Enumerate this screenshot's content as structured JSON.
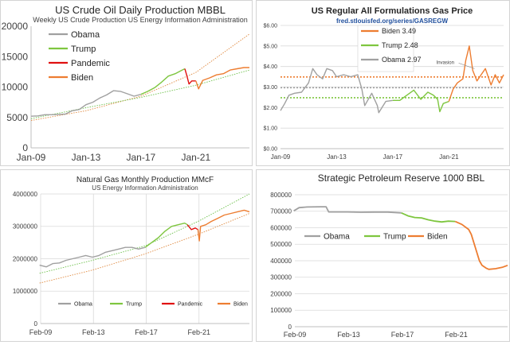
{
  "colors": {
    "obama": "#a0a0a0",
    "trump": "#7ec63f",
    "pandemic": "#e01010",
    "biden": "#ed7d31",
    "grid": "#d9d9d9",
    "trend": "#6cc04a",
    "trend2": "#e08a40"
  },
  "chart_data": [
    {
      "type": "line",
      "title": "US Crude Oil Daily Production MBBL",
      "subtitle": "Weekly US Crude Production US Energy Information Administration",
      "xlim": [
        2009,
        2024.9
      ],
      "ylim": [
        0,
        20000
      ],
      "ytick_values": [
        0,
        5000,
        10000,
        15000,
        20000
      ],
      "ytick_labels": [
        "0",
        "5000",
        "10000",
        "15000",
        "20000"
      ],
      "xtick_values": [
        2009,
        2013,
        2017,
        2021
      ],
      "xtick_labels": [
        "Jan-09",
        "Jan-13",
        "Jan-17",
        "Jan-21"
      ],
      "legend": [
        {
          "key": "obama",
          "name": "Obama"
        },
        {
          "key": "trump",
          "name": "Trump"
        },
        {
          "key": "pandemic",
          "name": "Pandemic"
        },
        {
          "key": "biden",
          "name": "Biden"
        }
      ],
      "series": [
        {
          "key": "obama",
          "name": "Obama",
          "x": [
            2009,
            2009.5,
            2010,
            2010.5,
            2011,
            2011.5,
            2012,
            2012.5,
            2013,
            2013.5,
            2014,
            2014.5,
            2015,
            2015.5,
            2016,
            2016.5,
            2017
          ],
          "y": [
            5200,
            5250,
            5450,
            5450,
            5500,
            5550,
            6100,
            6300,
            7100,
            7500,
            8200,
            8700,
            9400,
            9300,
            8900,
            8500,
            8800
          ]
        },
        {
          "key": "trump",
          "name": "Trump",
          "x": [
            2017,
            2017.5,
            2018,
            2018.5,
            2019,
            2019.5,
            2020,
            2020.2
          ],
          "y": [
            8800,
            9300,
            9900,
            10800,
            11800,
            12200,
            12800,
            13000
          ]
        },
        {
          "key": "pandemic",
          "name": "Pandemic",
          "x": [
            2020.2,
            2020.35,
            2020.5,
            2020.7,
            2021
          ],
          "y": [
            13000,
            11800,
            10500,
            11000,
            11000
          ]
        },
        {
          "key": "biden",
          "name": "Biden",
          "x": [
            2021,
            2021.2,
            2021.5,
            2022,
            2022.5,
            2023,
            2023.5,
            2024,
            2024.5,
            2024.9
          ],
          "y": [
            11000,
            9700,
            11100,
            11500,
            12000,
            12200,
            12800,
            13000,
            13200,
            13200
          ]
        }
      ],
      "trends": [
        {
          "x": [
            2009,
            2013,
            2017,
            2021,
            2024.9
          ],
          "y": [
            4500,
            6100,
            8500,
            12400,
            18700
          ]
        },
        {
          "x": [
            2009,
            2013,
            2017,
            2021,
            2024.9
          ],
          "y": [
            4800,
            6600,
            8300,
            10300,
            12800
          ]
        }
      ]
    },
    {
      "type": "line",
      "title": "US Regular All Formulations Gas Price",
      "subtitle": "fred.stlouisfed.org/series/GASREGW",
      "xlim": [
        2009,
        2024.9
      ],
      "ylim": [
        0,
        6
      ],
      "ytick_values": [
        0,
        1,
        2,
        3,
        4,
        5,
        6
      ],
      "ytick_labels": [
        "$0.00",
        "$1.00",
        "$2.00",
        "$3.00",
        "$4.00",
        "$5.00",
        "$6.00"
      ],
      "xtick_values": [
        2009,
        2013,
        2017,
        2021
      ],
      "xtick_labels": [
        "Jan-09",
        "Jan-13",
        "Jan-17",
        "Jan-21"
      ],
      "legend": [
        {
          "key": "biden",
          "name": "Biden 3.49"
        },
        {
          "key": "trump",
          "name": "Trump 2.48"
        },
        {
          "key": "obama",
          "name": "Obama 2.97"
        }
      ],
      "annotation": "Invasion",
      "averages": [
        {
          "key": "biden",
          "value": 3.49
        },
        {
          "key": "trump",
          "value": 2.48
        },
        {
          "key": "obama",
          "value": 2.97
        }
      ],
      "series": [
        {
          "key": "obama",
          "name": "Obama",
          "x": [
            2009,
            2009.3,
            2009.6,
            2010,
            2010.5,
            2011,
            2011.3,
            2011.6,
            2012,
            2012.3,
            2012.7,
            2013,
            2013.5,
            2014,
            2014.5,
            2014.8,
            2015,
            2015.5,
            2015.9,
            2016,
            2016.5,
            2017
          ],
          "y": [
            1.85,
            2.2,
            2.6,
            2.7,
            2.75,
            3.2,
            3.9,
            3.6,
            3.4,
            3.9,
            3.8,
            3.5,
            3.6,
            3.5,
            3.6,
            2.9,
            2.1,
            2.7,
            2.1,
            1.75,
            2.3,
            2.35
          ]
        },
        {
          "key": "trump",
          "name": "Trump",
          "x": [
            2017,
            2017.5,
            2018,
            2018.5,
            2019,
            2019.5,
            2019.9,
            2020.2,
            2020.35,
            2020.6,
            2021
          ],
          "y": [
            2.35,
            2.35,
            2.6,
            2.85,
            2.4,
            2.75,
            2.6,
            2.4,
            1.8,
            2.2,
            2.3
          ]
        },
        {
          "key": "biden",
          "name": "Biden",
          "x": [
            2021,
            2021.3,
            2021.6,
            2022,
            2022.2,
            2022.45,
            2022.7,
            2023,
            2023.3,
            2023.6,
            2024,
            2024.3,
            2024.6,
            2024.9
          ],
          "y": [
            2.3,
            2.9,
            3.2,
            3.4,
            4.3,
            5.0,
            3.8,
            3.3,
            3.6,
            3.9,
            3.1,
            3.6,
            3.2,
            3.6
          ]
        }
      ]
    },
    {
      "type": "line",
      "title": "Natural Gas Monthly Production MMcF",
      "subtitle": "US Energy Information Administration",
      "xlim": [
        2009.08,
        2024.9
      ],
      "ylim": [
        0,
        4000000
      ],
      "ytick_values": [
        0,
        1000000,
        2000000,
        3000000,
        4000000
      ],
      "ytick_labels": [
        "0",
        "1000000",
        "2000000",
        "3000000",
        "4000000"
      ],
      "xtick_values": [
        2009.08,
        2013.08,
        2017.08,
        2021.08
      ],
      "xtick_labels": [
        "Feb-09",
        "Feb-13",
        "Feb-17",
        "Feb-21"
      ],
      "legend": [
        {
          "key": "obama",
          "name": "Obama"
        },
        {
          "key": "trump",
          "name": "Trump"
        },
        {
          "key": "pandemic",
          "name": "Pandemic"
        },
        {
          "key": "biden",
          "name": "Biden"
        }
      ],
      "series": [
        {
          "key": "obama",
          "name": "Obama",
          "x": [
            2009,
            2009.5,
            2010,
            2010.5,
            2011,
            2011.5,
            2012,
            2012.5,
            2013,
            2013.5,
            2014,
            2014.5,
            2015,
            2015.5,
            2016,
            2016.5,
            2017
          ],
          "y": [
            1800000,
            1750000,
            1850000,
            1870000,
            1950000,
            2000000,
            2050000,
            2100000,
            2050000,
            2100000,
            2200000,
            2250000,
            2300000,
            2350000,
            2350000,
            2300000,
            2350000
          ]
        },
        {
          "key": "trump",
          "name": "Trump",
          "x": [
            2017,
            2017.5,
            2018,
            2018.5,
            2019,
            2019.5,
            2020,
            2020.2
          ],
          "y": [
            2350000,
            2500000,
            2650000,
            2850000,
            3000000,
            3050000,
            3100000,
            3050000
          ]
        },
        {
          "key": "pandemic",
          "name": "Pandemic",
          "x": [
            2020.2,
            2020.5,
            2020.8,
            2021
          ],
          "y": [
            3050000,
            2900000,
            2950000,
            2900000
          ]
        },
        {
          "key": "biden",
          "name": "Biden",
          "x": [
            2021,
            2021.1,
            2021.2,
            2021.6,
            2022,
            2022.5,
            2023,
            2023.5,
            2024,
            2024.5,
            2024.9
          ],
          "y": [
            2900000,
            2550000,
            3000000,
            3050000,
            3150000,
            3250000,
            3350000,
            3400000,
            3450000,
            3500000,
            3450000
          ]
        }
      ],
      "trends": [
        {
          "x": [
            2009,
            2013,
            2017,
            2021,
            2024.9
          ],
          "y": [
            1250000,
            1650000,
            2150000,
            2750000,
            3400000
          ]
        },
        {
          "x": [
            2009,
            2013,
            2017,
            2021,
            2024.9
          ],
          "y": [
            1550000,
            1950000,
            2400000,
            3150000,
            4000000
          ]
        }
      ]
    },
    {
      "type": "line",
      "title": "Strategic Petroleum Reserve 1000 BBL",
      "xlim": [
        2009.08,
        2024.9
      ],
      "ylim": [
        0,
        800000
      ],
      "ytick_values": [
        0,
        100000,
        200000,
        300000,
        400000,
        500000,
        600000,
        700000,
        800000
      ],
      "ytick_labels": [
        "0",
        "100000",
        "200000",
        "300000",
        "400000",
        "500000",
        "600000",
        "700000",
        "800000"
      ],
      "xtick_values": [
        2009.08,
        2013.08,
        2017.08,
        2021.08
      ],
      "xtick_labels": [
        "Feb-09",
        "Feb-13",
        "Feb-17",
        "Feb-21"
      ],
      "legend": [
        {
          "key": "obama",
          "name": "Obama"
        },
        {
          "key": "trump",
          "name": "Trump"
        },
        {
          "key": "biden",
          "name": "Biden"
        }
      ],
      "series": [
        {
          "key": "obama",
          "name": "Obama",
          "x": [
            2009,
            2009.4,
            2010,
            2011,
            2011.4,
            2011.6,
            2012,
            2013,
            2014,
            2015,
            2016,
            2017
          ],
          "y": [
            702000,
            722000,
            726000,
            727000,
            727000,
            696000,
            696000,
            696000,
            694000,
            695000,
            695000,
            690000
          ]
        },
        {
          "key": "trump",
          "name": "Trump",
          "x": [
            2017,
            2017.5,
            2018,
            2018.5,
            2019,
            2019.5,
            2020,
            2020.5,
            2021
          ],
          "y": [
            690000,
            672000,
            662000,
            660000,
            648000,
            640000,
            635000,
            640000,
            638000
          ]
        },
        {
          "key": "biden",
          "name": "Biden",
          "x": [
            2021,
            2021.5,
            2022,
            2022.2,
            2022.5,
            2022.8,
            2023,
            2023.3,
            2023.5,
            2024,
            2024.5,
            2024.9
          ],
          "y": [
            638000,
            620000,
            590000,
            560000,
            480000,
            400000,
            372000,
            355000,
            348000,
            352000,
            360000,
            372000
          ]
        }
      ]
    }
  ]
}
